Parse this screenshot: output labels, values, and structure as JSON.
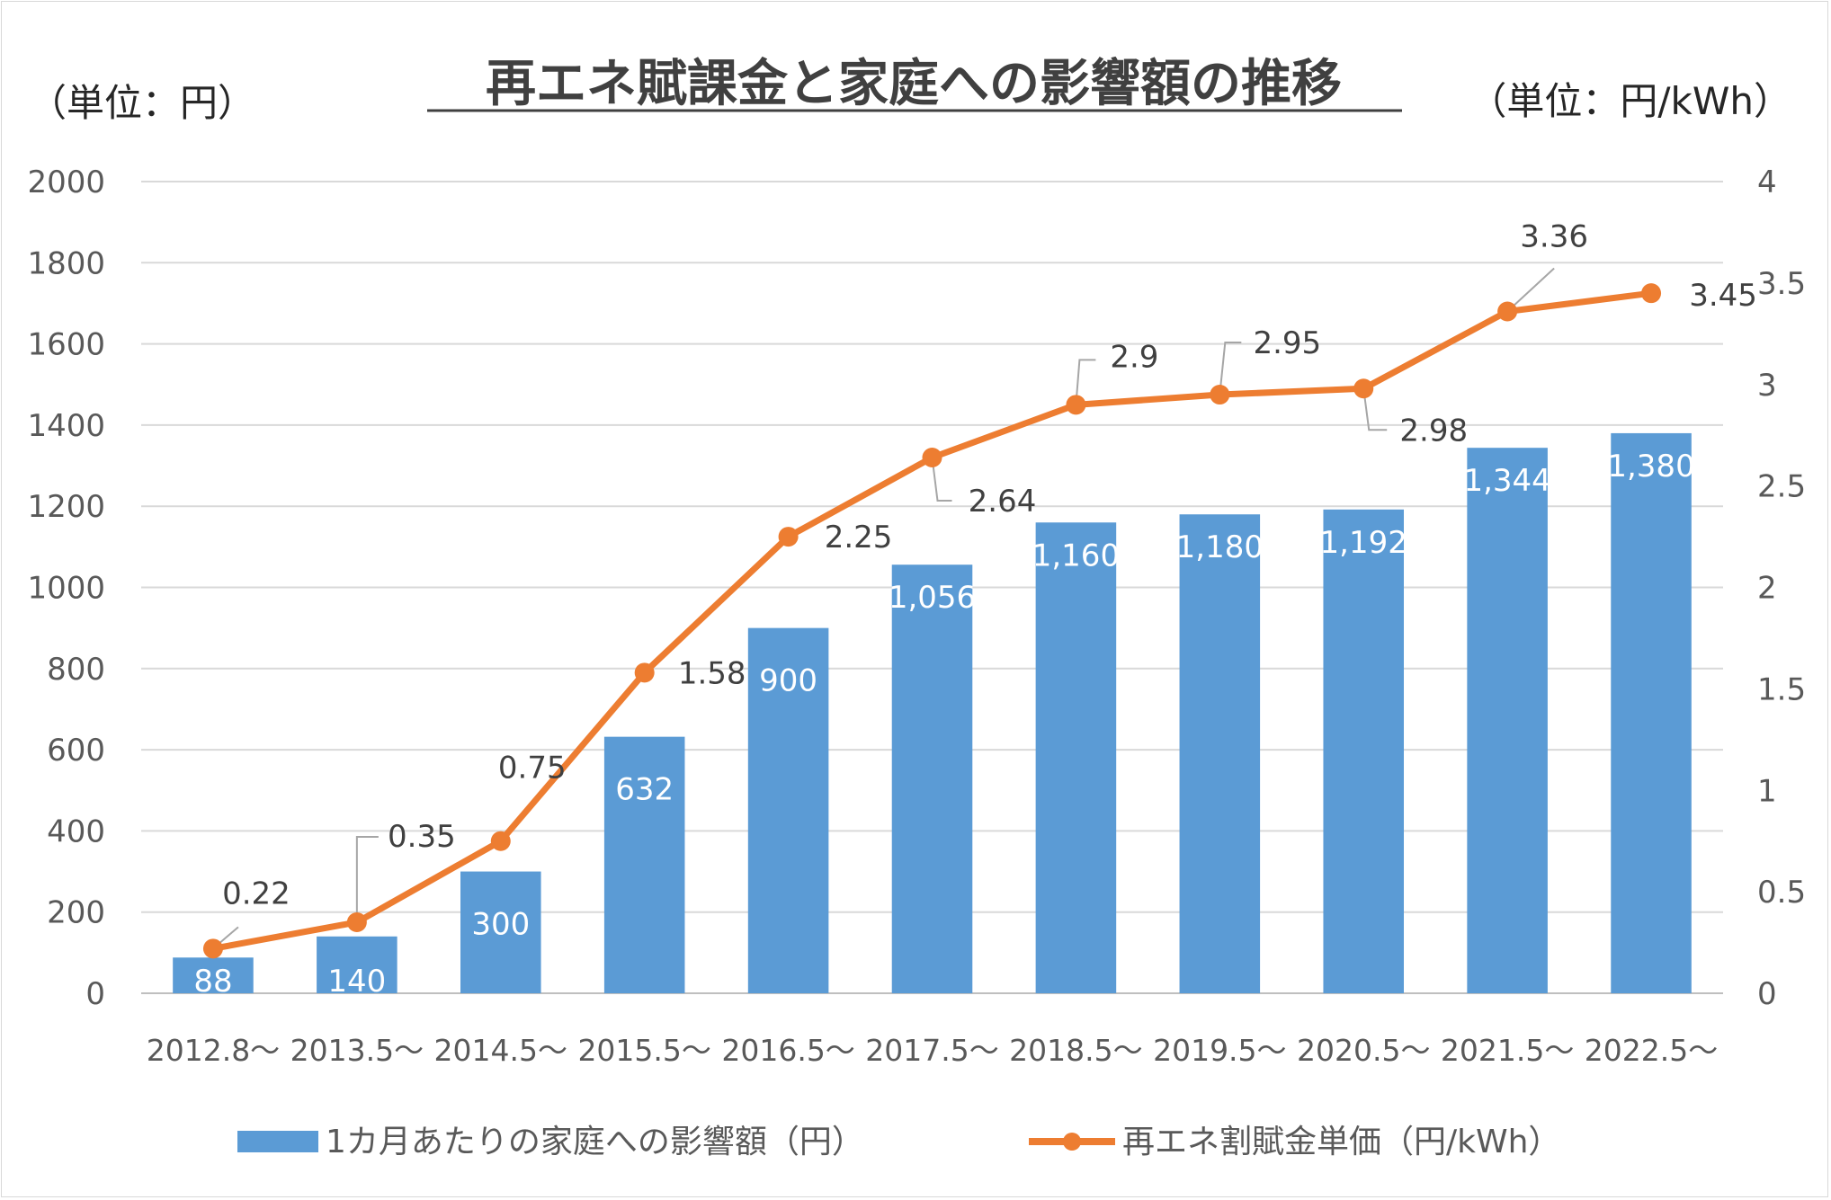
{
  "chart_data": {
    "type": "bar+line",
    "title": "再エネ賦課金と家庭への影響額の推移",
    "y_left_unit": "（単位：円）",
    "y_right_unit": "（単位：円/kWh）",
    "categories": [
      "2012.8～",
      "2013.5～",
      "2014.5～",
      "2015.5～",
      "2016.5～",
      "2017.5～",
      "2018.5～",
      "2019.5～",
      "2020.5～",
      "2021.5～",
      "2022.5～"
    ],
    "y_left": {
      "min": 0,
      "max": 2000,
      "step": 200,
      "ticks": [
        "0",
        "200",
        "400",
        "600",
        "800",
        "1000",
        "1200",
        "1400",
        "1600",
        "1800",
        "2000"
      ]
    },
    "y_right": {
      "min": 0,
      "max": 4,
      "step": 0.5,
      "ticks": [
        "0",
        "0.5",
        "1",
        "1.5",
        "2",
        "2.5",
        "3",
        "3.5",
        "4"
      ]
    },
    "grid": true,
    "legend_position": "bottom",
    "series": [
      {
        "name": "1カ月あたりの家庭への影響額（円）",
        "type": "bar",
        "axis": "left",
        "color": "#5b9bd5",
        "values": [
          88,
          140,
          300,
          632,
          900,
          1056,
          1160,
          1180,
          1192,
          1344,
          1380
        ],
        "labels": [
          "88",
          "140",
          "300",
          "632",
          "900",
          "1,056",
          "1,160",
          "1,180",
          "1,192",
          "1,344",
          "1,380"
        ]
      },
      {
        "name": "再エネ割賦金単価（円/kWh）",
        "type": "line",
        "axis": "right",
        "color": "#ed7d31",
        "values": [
          0.22,
          0.35,
          0.75,
          1.58,
          2.25,
          2.64,
          2.9,
          2.95,
          2.98,
          3.36,
          3.45
        ],
        "labels": [
          "0.22",
          "0.35",
          "0.75",
          "1.58",
          "2.25",
          "2.64",
          "2.9",
          "2.95",
          "2.98",
          "3.36",
          "3.45"
        ]
      }
    ]
  }
}
